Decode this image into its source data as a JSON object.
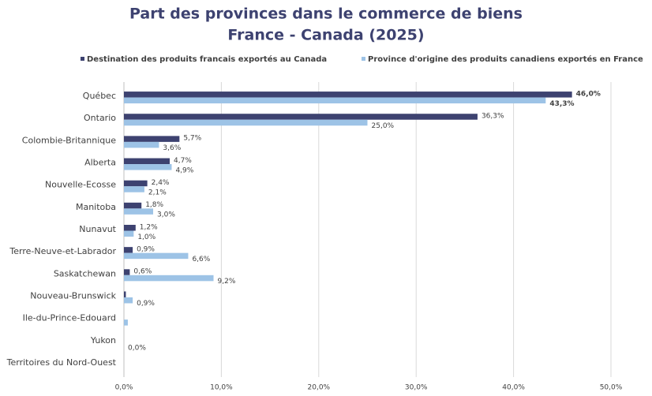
{
  "chart_data": {
    "type": "hbar",
    "title": "Part des provinces dans le commerce de biens",
    "subtitle": "France - Canada (2025)",
    "categories": [
      "Québec",
      "Ontario",
      "Colombie-Britannique",
      "Alberta",
      "Nouvelle-Ecosse",
      "Manitoba",
      "Nunavut",
      "Terre-Neuve-et-Labrador",
      "Saskatchewan",
      "Nouveau-Brunswick",
      "Ile-du-Prince-Edouard",
      "Yukon",
      "Territoires du Nord-Ouest"
    ],
    "series": [
      {
        "name": "Destination des produits francais exportés au Canada",
        "color": "#3d4270",
        "values": [
          46.0,
          36.3,
          5.7,
          4.7,
          2.4,
          1.8,
          1.2,
          0.9,
          0.6,
          0.2,
          null,
          null,
          null
        ],
        "value_labels": [
          "46,0%",
          "36,3%",
          "5,7%",
          "4,7%",
          "2,4%",
          "1,8%",
          "1,2%",
          "0,9%",
          "0,6%",
          null,
          null,
          null,
          null
        ]
      },
      {
        "name": "Province d'origine des produits canadiens exportés en France",
        "color": "#9dc3e6",
        "values": [
          43.3,
          25.0,
          3.6,
          4.9,
          2.1,
          3.0,
          1.0,
          6.6,
          9.2,
          0.9,
          0.4,
          0.0,
          null
        ],
        "value_labels": [
          "43,3%",
          "25,0%",
          "3,6%",
          "4,9%",
          "2,1%",
          "3,0%",
          "1,0%",
          "6,6%",
          "9,2%",
          "0,9%",
          null,
          "0,0%",
          null
        ]
      }
    ],
    "xlim": [
      0,
      50
    ],
    "xticks": [
      {
        "value": 0,
        "label": "0,0%"
      },
      {
        "value": 10,
        "label": "10,0%"
      },
      {
        "value": 20,
        "label": "20,0%"
      },
      {
        "value": 30,
        "label": "30,0%"
      },
      {
        "value": 40,
        "label": "40,0%"
      },
      {
        "value": 50,
        "label": "50,0%"
      }
    ],
    "grid": true
  }
}
